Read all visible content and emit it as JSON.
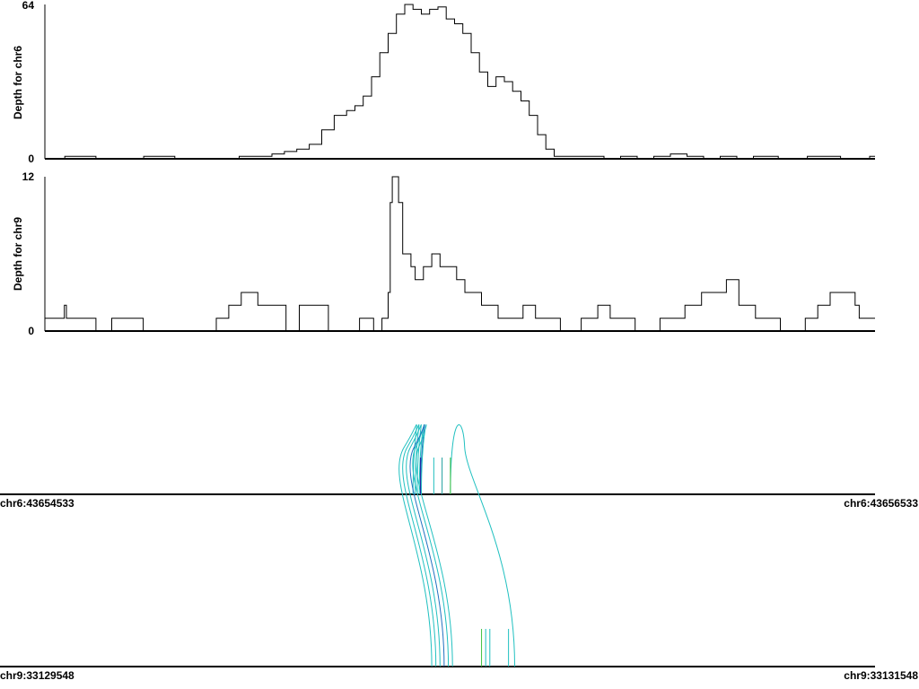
{
  "chart_data": [
    {
      "type": "area",
      "ylabel": "Depth for chr6",
      "ylim": [
        0,
        64
      ],
      "y_ticks": [
        "0",
        "64"
      ],
      "x_range": [
        43654533,
        43656533
      ],
      "series": [
        {
          "x": [
            43654533,
            43654580,
            43654581,
            43654655,
            43654656,
            43654770,
            43654771,
            43654845,
            43654846,
            43655000,
            43655001,
            43655050,
            43655080,
            43655110,
            43655140,
            43655170,
            43655200,
            43655230,
            43655260,
            43655280,
            43655300,
            43655320,
            43655340,
            43655360,
            43655380,
            43655400,
            43655420,
            43655440,
            43655460,
            43655480,
            43655500,
            43655520,
            43655540,
            43655560,
            43655580,
            43655600,
            43655620,
            43655640,
            43655660,
            43655680,
            43655700,
            43655720,
            43655740,
            43655760,
            43655780,
            43655800,
            43655820,
            43655840,
            43655860,
            43655880,
            43655900,
            43655920,
            43655940,
            43655960,
            43655980,
            43656000,
            43656020,
            43656040,
            43656060,
            43656080,
            43656100,
            43656120,
            43656140,
            43656160,
            43656180,
            43656200,
            43656220,
            43656240,
            43656260,
            43656290,
            43656300,
            43656330,
            43656370,
            43656380,
            43656450,
            43656451,
            43656520,
            43656521,
            43656533
          ],
          "y": [
            0,
            0,
            1,
            1,
            0,
            0,
            1,
            1,
            0,
            0,
            1,
            1,
            2,
            3,
            4,
            6,
            12,
            18,
            20,
            22,
            26,
            34,
            44,
            52,
            60,
            64,
            62,
            60,
            62,
            63,
            58,
            56,
            52,
            44,
            36,
            30,
            34,
            32,
            28,
            24,
            18,
            10,
            4,
            1,
            1,
            1,
            1,
            1,
            1,
            0,
            0,
            1,
            1,
            0,
            0,
            1,
            1,
            2,
            2,
            1,
            1,
            0,
            0,
            1,
            1,
            0,
            0,
            1,
            1,
            1,
            0,
            0,
            1,
            1,
            0,
            0,
            1,
            1,
            1
          ]
        }
      ]
    },
    {
      "type": "area",
      "ylabel": "Depth for chr9",
      "ylim": [
        0,
        12
      ],
      "y_ticks": [
        "0",
        "12"
      ],
      "x_range": [
        33129548,
        33131548
      ],
      "series": [
        {
          "x": [
            33129548,
            33129590,
            33129595,
            33129600,
            33129670,
            33129671,
            33129708,
            33129709,
            33129784,
            33129785,
            33129960,
            33129961,
            33129990,
            33129991,
            33130020,
            33130021,
            33130060,
            33130061,
            33130128,
            33130129,
            33130160,
            33130161,
            33130230,
            33130231,
            33130305,
            33130306,
            33130335,
            33130340,
            33130350,
            33130360,
            33130365,
            33130375,
            33130380,
            33130385,
            33130390,
            33130400,
            33130410,
            33130430,
            33130440,
            33130460,
            33130480,
            33130500,
            33130520,
            33130540,
            33130560,
            33130580,
            33130600,
            33130620,
            33130640,
            33130660,
            33130680,
            33130700,
            33130730,
            33130760,
            33130790,
            33130820,
            33130840,
            33130860,
            33130880,
            33130910,
            33130940,
            33130970,
            33131000,
            33131030,
            33131060,
            33131090,
            33131110,
            33131130,
            33131160,
            33131190,
            33131220,
            33131230,
            33131260,
            33131290,
            33131320,
            33131350,
            33131380,
            33131410,
            33131440,
            33131470,
            33131500,
            33131510,
            33131548
          ],
          "y": [
            1,
            1,
            2,
            1,
            1,
            0,
            0,
            1,
            1,
            0,
            0,
            1,
            1,
            2,
            2,
            3,
            3,
            2,
            2,
            0,
            0,
            2,
            2,
            0,
            0,
            1,
            1,
            0,
            0,
            1,
            1,
            3,
            10,
            12,
            12,
            10,
            6,
            5,
            4,
            5,
            6,
            5,
            5,
            4,
            3,
            3,
            2,
            2,
            1,
            1,
            1,
            2,
            1,
            1,
            0,
            0,
            1,
            1,
            2,
            1,
            1,
            0,
            0,
            1,
            1,
            2,
            2,
            3,
            3,
            4,
            2,
            2,
            1,
            1,
            0,
            0,
            1,
            2,
            3,
            3,
            2,
            1,
            1
          ]
        }
      ]
    },
    {
      "type": "other",
      "description_labels": {
        "top_left": "chr6:43654533",
        "top_right": "chr6:43656533",
        "bottom_left": "chr9:33129548",
        "bottom_right": "chr9:33131548"
      },
      "top_range": [
        43654533,
        43656533
      ],
      "bottom_range": [
        33129548,
        33131548
      ],
      "links": [
        {
          "from": 43655420,
          "to": 33130480,
          "color": "#20c0c0"
        },
        {
          "from": 43655425,
          "to": 33130490,
          "color": "#20c0c0"
        },
        {
          "from": 43655430,
          "to": 33130500,
          "color": "#20c0c0"
        },
        {
          "from": 43655435,
          "to": 33130520,
          "color": "#20c0c0"
        },
        {
          "from": 43655438,
          "to": 33130510,
          "color": "#2070c0"
        },
        {
          "from": 43655440,
          "to": 33130530,
          "color": "#20c0c0"
        },
        {
          "from": 43655510,
          "to": 33130680,
          "color": "#20c0c0"
        }
      ],
      "top_ticks": [
        {
          "pos": 43655438,
          "color": "#2020a0"
        },
        {
          "pos": 43655470,
          "color": "#20c0c0"
        },
        {
          "pos": 43655490,
          "color": "#20a0a0"
        },
        {
          "pos": 43655510,
          "color": "#40c040"
        }
      ],
      "bottom_ticks": [
        {
          "pos": 33130600,
          "color": "#40c040"
        },
        {
          "pos": 33130610,
          "color": "#20c0c0"
        },
        {
          "pos": 33130620,
          "color": "#20c0c0"
        },
        {
          "pos": 33130665,
          "color": "#20c0c0"
        }
      ]
    }
  ]
}
